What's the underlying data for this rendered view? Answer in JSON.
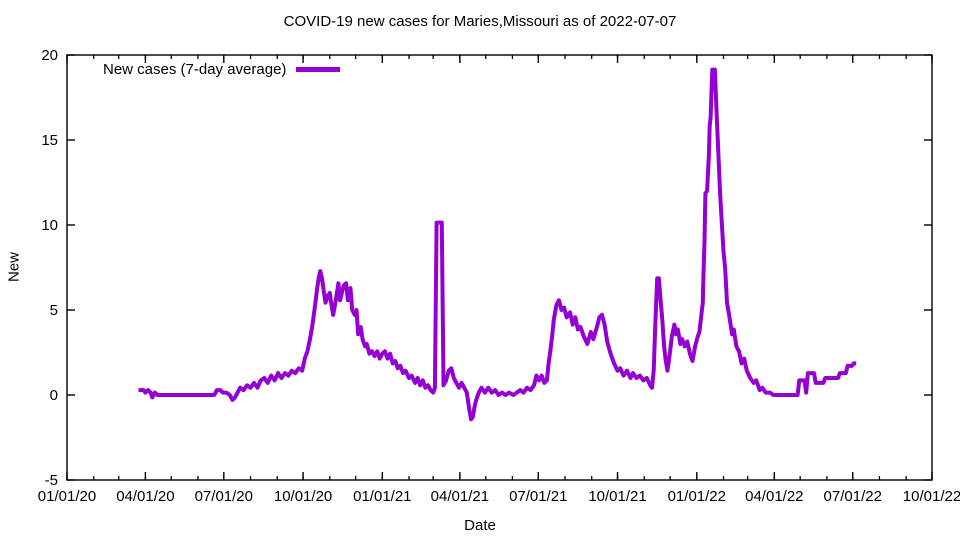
{
  "chart_data": {
    "type": "line",
    "title": "COVID-19 new cases for Maries,Missouri as of 2022-07-07",
    "xlabel": "Date",
    "ylabel": "New",
    "grid": false,
    "legend_position": "top-left",
    "background": "#ffffff",
    "axis_color": "#000000",
    "text_color": "#000000",
    "x_range": [
      "2020-01-01",
      "2022-10-01"
    ],
    "ylim": [
      -5,
      20
    ],
    "y_ticks": [
      -5,
      0,
      5,
      10,
      15,
      20
    ],
    "x_minor_tick_interval": "1 month",
    "x_ticks": [
      {
        "date": "2020-01-01",
        "label": "01/01/20"
      },
      {
        "date": "2020-04-01",
        "label": "04/01/20"
      },
      {
        "date": "2020-07-01",
        "label": "07/01/20"
      },
      {
        "date": "2020-10-01",
        "label": "10/01/20"
      },
      {
        "date": "2021-01-01",
        "label": "01/01/21"
      },
      {
        "date": "2021-04-01",
        "label": "04/01/21"
      },
      {
        "date": "2021-07-01",
        "label": "07/01/21"
      },
      {
        "date": "2021-10-01",
        "label": "10/01/21"
      },
      {
        "date": "2022-01-01",
        "label": "01/01/22"
      },
      {
        "date": "2022-04-01",
        "label": "04/01/22"
      },
      {
        "date": "2022-07-01",
        "label": "07/01/22"
      },
      {
        "date": "2022-10-01",
        "label": "10/01/22"
      }
    ],
    "series": [
      {
        "name": "New cases (7-day average)",
        "color": "#9400D3",
        "line_width": 4,
        "points": [
          [
            "2020-03-24",
            0.29
          ],
          [
            "2020-03-30",
            0.29
          ],
          [
            "2020-04-01",
            0.14
          ],
          [
            "2020-04-04",
            0.29
          ],
          [
            "2020-04-07",
            0.14
          ],
          [
            "2020-04-09",
            -0.14
          ],
          [
            "2020-04-12",
            0.14
          ],
          [
            "2020-04-15",
            0.0
          ],
          [
            "2020-06-20",
            0.0
          ],
          [
            "2020-06-23",
            0.29
          ],
          [
            "2020-06-27",
            0.29
          ],
          [
            "2020-06-30",
            0.14
          ],
          [
            "2020-07-04",
            0.14
          ],
          [
            "2020-07-08",
            0.0
          ],
          [
            "2020-07-11",
            -0.29
          ],
          [
            "2020-07-14",
            -0.14
          ],
          [
            "2020-07-17",
            0.14
          ],
          [
            "2020-07-20",
            0.43
          ],
          [
            "2020-07-24",
            0.29
          ],
          [
            "2020-07-28",
            0.57
          ],
          [
            "2020-08-01",
            0.43
          ],
          [
            "2020-08-05",
            0.71
          ],
          [
            "2020-08-09",
            0.43
          ],
          [
            "2020-08-13",
            0.86
          ],
          [
            "2020-08-17",
            1.0
          ],
          [
            "2020-08-21",
            0.71
          ],
          [
            "2020-08-25",
            1.14
          ],
          [
            "2020-08-29",
            0.86
          ],
          [
            "2020-09-02",
            1.29
          ],
          [
            "2020-09-06",
            1.0
          ],
          [
            "2020-09-10",
            1.29
          ],
          [
            "2020-09-14",
            1.14
          ],
          [
            "2020-09-18",
            1.43
          ],
          [
            "2020-09-22",
            1.29
          ],
          [
            "2020-09-26",
            1.57
          ],
          [
            "2020-09-30",
            1.43
          ],
          [
            "2020-10-03",
            2.14
          ],
          [
            "2020-10-06",
            2.57
          ],
          [
            "2020-10-09",
            3.29
          ],
          [
            "2020-10-12",
            4.14
          ],
          [
            "2020-10-15",
            5.29
          ],
          [
            "2020-10-17",
            6.14
          ],
          [
            "2020-10-19",
            6.86
          ],
          [
            "2020-10-21",
            7.29
          ],
          [
            "2020-10-23",
            6.86
          ],
          [
            "2020-10-25",
            6.14
          ],
          [
            "2020-10-27",
            5.43
          ],
          [
            "2020-10-30",
            5.86
          ],
          [
            "2020-11-01",
            6.0
          ],
          [
            "2020-11-03",
            5.29
          ],
          [
            "2020-11-05",
            4.71
          ],
          [
            "2020-11-08",
            5.57
          ],
          [
            "2020-11-11",
            6.57
          ],
          [
            "2020-11-13",
            5.57
          ],
          [
            "2020-11-15",
            6.0
          ],
          [
            "2020-11-17",
            6.43
          ],
          [
            "2020-11-20",
            6.57
          ],
          [
            "2020-11-22",
            5.57
          ],
          [
            "2020-11-25",
            6.29
          ],
          [
            "2020-11-27",
            5.0
          ],
          [
            "2020-11-30",
            4.71
          ],
          [
            "2020-12-02",
            5.0
          ],
          [
            "2020-12-04",
            3.57
          ],
          [
            "2020-12-07",
            4.0
          ],
          [
            "2020-12-09",
            3.29
          ],
          [
            "2020-12-12",
            2.86
          ],
          [
            "2020-12-14",
            3.0
          ],
          [
            "2020-12-17",
            2.43
          ],
          [
            "2020-12-20",
            2.57
          ],
          [
            "2020-12-23",
            2.29
          ],
          [
            "2020-12-26",
            2.57
          ],
          [
            "2020-12-29",
            2.14
          ],
          [
            "2021-01-01",
            2.43
          ],
          [
            "2021-01-04",
            2.57
          ],
          [
            "2021-01-07",
            2.14
          ],
          [
            "2021-01-10",
            2.43
          ],
          [
            "2021-01-13",
            1.86
          ],
          [
            "2021-01-16",
            2.0
          ],
          [
            "2021-01-19",
            1.57
          ],
          [
            "2021-01-22",
            1.71
          ],
          [
            "2021-01-25",
            1.29
          ],
          [
            "2021-01-28",
            1.43
          ],
          [
            "2021-02-01",
            1.0
          ],
          [
            "2021-02-04",
            1.14
          ],
          [
            "2021-02-08",
            0.71
          ],
          [
            "2021-02-11",
            1.0
          ],
          [
            "2021-02-14",
            0.57
          ],
          [
            "2021-02-17",
            0.86
          ],
          [
            "2021-02-20",
            0.43
          ],
          [
            "2021-02-23",
            0.57
          ],
          [
            "2021-02-26",
            0.29
          ],
          [
            "2021-03-01",
            0.14
          ],
          [
            "2021-03-03",
            0.43
          ],
          [
            "2021-03-05",
            10.14
          ],
          [
            "2021-03-11",
            10.14
          ],
          [
            "2021-03-13",
            0.57
          ],
          [
            "2021-03-16",
            0.86
          ],
          [
            "2021-03-19",
            1.43
          ],
          [
            "2021-03-22",
            1.57
          ],
          [
            "2021-03-25",
            1.0
          ],
          [
            "2021-03-28",
            0.71
          ],
          [
            "2021-03-31",
            0.43
          ],
          [
            "2021-04-03",
            0.71
          ],
          [
            "2021-04-06",
            0.43
          ],
          [
            "2021-04-09",
            0.14
          ],
          [
            "2021-04-12",
            -0.86
          ],
          [
            "2021-04-14",
            -1.43
          ],
          [
            "2021-04-16",
            -1.29
          ],
          [
            "2021-04-18",
            -0.71
          ],
          [
            "2021-04-20",
            -0.29
          ],
          [
            "2021-04-23",
            0.14
          ],
          [
            "2021-04-26",
            0.43
          ],
          [
            "2021-04-30",
            0.14
          ],
          [
            "2021-05-04",
            0.43
          ],
          [
            "2021-05-08",
            0.14
          ],
          [
            "2021-05-12",
            0.29
          ],
          [
            "2021-05-16",
            0.0
          ],
          [
            "2021-05-20",
            0.14
          ],
          [
            "2021-05-24",
            0.0
          ],
          [
            "2021-05-28",
            0.14
          ],
          [
            "2021-06-02",
            0.0
          ],
          [
            "2021-06-06",
            0.14
          ],
          [
            "2021-06-10",
            0.29
          ],
          [
            "2021-06-14",
            0.14
          ],
          [
            "2021-06-18",
            0.43
          ],
          [
            "2021-06-22",
            0.29
          ],
          [
            "2021-06-26",
            0.57
          ],
          [
            "2021-06-29",
            1.14
          ],
          [
            "2021-07-02",
            0.86
          ],
          [
            "2021-07-05",
            1.14
          ],
          [
            "2021-07-08",
            0.71
          ],
          [
            "2021-07-11",
            0.86
          ],
          [
            "2021-07-13",
            1.86
          ],
          [
            "2021-07-15",
            2.57
          ],
          [
            "2021-07-17",
            3.43
          ],
          [
            "2021-07-19",
            4.43
          ],
          [
            "2021-07-22",
            5.29
          ],
          [
            "2021-07-25",
            5.57
          ],
          [
            "2021-07-28",
            5.0
          ],
          [
            "2021-07-31",
            5.14
          ],
          [
            "2021-08-03",
            4.57
          ],
          [
            "2021-08-07",
            4.86
          ],
          [
            "2021-08-10",
            4.14
          ],
          [
            "2021-08-13",
            4.57
          ],
          [
            "2021-08-16",
            3.86
          ],
          [
            "2021-08-19",
            4.0
          ],
          [
            "2021-08-23",
            3.43
          ],
          [
            "2021-08-27",
            3.0
          ],
          [
            "2021-08-31",
            3.71
          ],
          [
            "2021-09-03",
            3.29
          ],
          [
            "2021-09-07",
            4.0
          ],
          [
            "2021-09-10",
            4.57
          ],
          [
            "2021-09-13",
            4.71
          ],
          [
            "2021-09-16",
            4.14
          ],
          [
            "2021-09-19",
            3.14
          ],
          [
            "2021-09-23",
            2.43
          ],
          [
            "2021-09-27",
            1.86
          ],
          [
            "2021-10-01",
            1.43
          ],
          [
            "2021-10-04",
            1.57
          ],
          [
            "2021-10-08",
            1.14
          ],
          [
            "2021-10-12",
            1.43
          ],
          [
            "2021-10-16",
            1.0
          ],
          [
            "2021-10-19",
            1.29
          ],
          [
            "2021-10-23",
            1.0
          ],
          [
            "2021-10-27",
            1.14
          ],
          [
            "2021-10-31",
            0.86
          ],
          [
            "2021-11-04",
            1.0
          ],
          [
            "2021-11-08",
            0.57
          ],
          [
            "2021-11-10",
            0.43
          ],
          [
            "2021-11-12",
            1.43
          ],
          [
            "2021-11-14",
            4.29
          ],
          [
            "2021-11-16",
            6.86
          ],
          [
            "2021-11-18",
            6.86
          ],
          [
            "2021-11-20",
            5.57
          ],
          [
            "2021-11-22",
            4.43
          ],
          [
            "2021-11-24",
            2.86
          ],
          [
            "2021-11-26",
            2.0
          ],
          [
            "2021-11-28",
            1.43
          ],
          [
            "2021-12-01",
            2.57
          ],
          [
            "2021-12-03",
            3.43
          ],
          [
            "2021-12-06",
            4.14
          ],
          [
            "2021-12-08",
            3.57
          ],
          [
            "2021-12-10",
            3.86
          ],
          [
            "2021-12-13",
            3.0
          ],
          [
            "2021-12-15",
            3.29
          ],
          [
            "2021-12-18",
            2.86
          ],
          [
            "2021-12-21",
            3.14
          ],
          [
            "2021-12-24",
            2.43
          ],
          [
            "2021-12-27",
            2.0
          ],
          [
            "2021-12-30",
            2.86
          ],
          [
            "2022-01-02",
            3.43
          ],
          [
            "2022-01-04",
            3.71
          ],
          [
            "2022-01-06",
            4.57
          ],
          [
            "2022-01-08",
            5.43
          ],
          [
            "2022-01-09",
            7.57
          ],
          [
            "2022-01-10",
            9.0
          ],
          [
            "2022-01-11",
            11.86
          ],
          [
            "2022-01-13",
            12.0
          ],
          [
            "2022-01-15",
            14.14
          ],
          [
            "2022-01-16",
            15.86
          ],
          [
            "2022-01-17",
            16.29
          ],
          [
            "2022-01-19",
            19.14
          ],
          [
            "2022-01-22",
            19.14
          ],
          [
            "2022-01-24",
            16.57
          ],
          [
            "2022-01-26",
            14.29
          ],
          [
            "2022-01-28",
            11.86
          ],
          [
            "2022-01-30",
            10.14
          ],
          [
            "2022-02-01",
            8.43
          ],
          [
            "2022-02-03",
            7.43
          ],
          [
            "2022-02-05",
            5.43
          ],
          [
            "2022-02-08",
            4.57
          ],
          [
            "2022-02-11",
            3.57
          ],
          [
            "2022-02-13",
            3.86
          ],
          [
            "2022-02-16",
            2.86
          ],
          [
            "2022-02-19",
            2.57
          ],
          [
            "2022-02-22",
            1.86
          ],
          [
            "2022-02-25",
            2.14
          ],
          [
            "2022-02-28",
            1.43
          ],
          [
            "2022-03-04",
            1.0
          ],
          [
            "2022-03-08",
            0.71
          ],
          [
            "2022-03-11",
            0.86
          ],
          [
            "2022-03-15",
            0.29
          ],
          [
            "2022-03-18",
            0.43
          ],
          [
            "2022-03-22",
            0.14
          ],
          [
            "2022-03-27",
            0.14
          ],
          [
            "2022-03-31",
            0.0
          ],
          [
            "2022-04-28",
            0.0
          ],
          [
            "2022-04-30",
            0.86
          ],
          [
            "2022-05-06",
            0.86
          ],
          [
            "2022-05-08",
            0.14
          ],
          [
            "2022-05-10",
            1.29
          ],
          [
            "2022-05-17",
            1.29
          ],
          [
            "2022-05-19",
            0.71
          ],
          [
            "2022-05-28",
            0.71
          ],
          [
            "2022-05-30",
            1.0
          ],
          [
            "2022-06-14",
            1.0
          ],
          [
            "2022-06-16",
            1.29
          ],
          [
            "2022-06-23",
            1.29
          ],
          [
            "2022-06-25",
            1.71
          ],
          [
            "2022-06-30",
            1.71
          ],
          [
            "2022-07-02",
            1.86
          ],
          [
            "2022-07-05",
            1.86
          ]
        ]
      }
    ]
  }
}
